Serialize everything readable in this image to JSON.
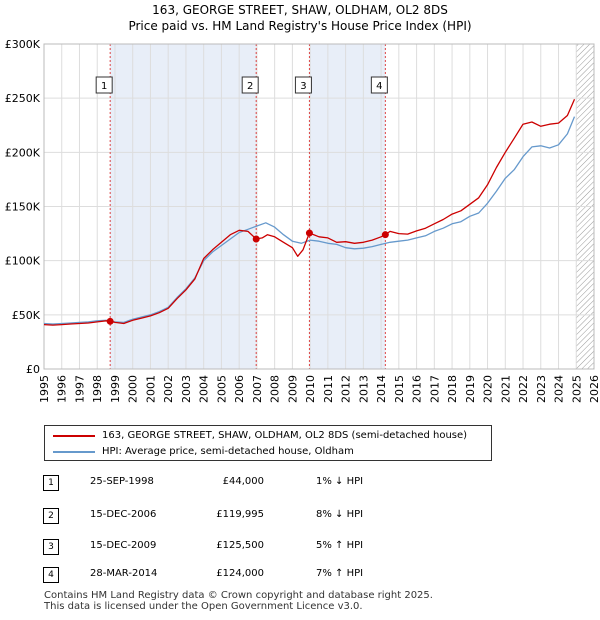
{
  "title_line1": "163, GEORGE STREET, SHAW, OLDHAM, OL2 8DS",
  "title_line2": "Price paid vs. HM Land Registry's House Price Index (HPI)",
  "colors": {
    "price_line": "#cc0000",
    "hpi_line": "#6699cc",
    "shade": "#e8eef8",
    "marker_line": "#dd4444",
    "hatch": "#999999",
    "grid": "#dddddd"
  },
  "chart_data": {
    "type": "line",
    "title": "163, GEORGE STREET, SHAW, OLDHAM, OL2 8DS",
    "subtitle": "Price paid vs. HM Land Registry's House Price Index (HPI)",
    "xlabel": "",
    "ylabel": "",
    "xlim": [
      1995,
      2026
    ],
    "ylim": [
      0,
      300000
    ],
    "x_ticks": [
      1995,
      1996,
      1997,
      1998,
      1999,
      2000,
      2001,
      2002,
      2003,
      2004,
      2005,
      2006,
      2007,
      2008,
      2009,
      2010,
      2011,
      2012,
      2013,
      2014,
      2015,
      2016,
      2017,
      2018,
      2019,
      2020,
      2021,
      2022,
      2023,
      2024,
      2025,
      2026
    ],
    "y_ticks": [
      {
        "value": 0,
        "label": "£0"
      },
      {
        "value": 50000,
        "label": "£50K"
      },
      {
        "value": 100000,
        "label": "£100K"
      },
      {
        "value": 150000,
        "label": "£150K"
      },
      {
        "value": 200000,
        "label": "£200K"
      },
      {
        "value": 250000,
        "label": "£250K"
      },
      {
        "value": 300000,
        "label": "£300K"
      }
    ],
    "grid": true,
    "shaded_ranges": [
      [
        1998.73,
        2006.96
      ],
      [
        2009.96,
        2014.24
      ]
    ],
    "hatched_from": 2025.0,
    "series": [
      {
        "name": "163, GEORGE STREET, SHAW, OLDHAM, OL2 8DS (semi-detached house)",
        "x": [
          1995.0,
          1995.5,
          1996.0,
          1996.5,
          1997.0,
          1997.5,
          1998.0,
          1998.5,
          1998.73,
          1999.0,
          1999.5,
          2000.0,
          2000.5,
          2001.0,
          2001.5,
          2002.0,
          2002.5,
          2003.0,
          2003.5,
          2004.0,
          2004.5,
          2005.0,
          2005.5,
          2006.0,
          2006.5,
          2006.96,
          2007.3,
          2007.6,
          2008.0,
          2008.5,
          2009.0,
          2009.3,
          2009.6,
          2009.96,
          2010.5,
          2011.0,
          2011.5,
          2012.0,
          2012.5,
          2013.0,
          2013.5,
          2014.0,
          2014.24,
          2014.5,
          2015.0,
          2015.5,
          2016.0,
          2016.5,
          2017.0,
          2017.5,
          2018.0,
          2018.5,
          2019.0,
          2019.5,
          2020.0,
          2020.5,
          2021.0,
          2021.5,
          2022.0,
          2022.5,
          2023.0,
          2023.5,
          2024.0,
          2024.5,
          2024.9
        ],
        "values": [
          41000,
          40500,
          41000,
          41500,
          42000,
          42500,
          43500,
          44500,
          44000,
          43000,
          42000,
          45000,
          47000,
          49000,
          52000,
          56000,
          65000,
          73000,
          83000,
          102000,
          110000,
          117000,
          124000,
          128000,
          127000,
          119995,
          121000,
          124000,
          122000,
          117000,
          112000,
          104000,
          110000,
          125500,
          122000,
          121000,
          117000,
          117500,
          116000,
          117000,
          119000,
          122000,
          124000,
          127000,
          125000,
          124500,
          127500,
          130000,
          134000,
          138000,
          143000,
          146000,
          152000,
          158000,
          170000,
          186000,
          200000,
          213000,
          226000,
          228000,
          224000,
          226000,
          227000,
          234000,
          249000
        ]
      },
      {
        "name": "HPI: Average price, semi-detached house, Oldham",
        "x": [
          1995.0,
          1995.5,
          1996.0,
          1996.5,
          1997.0,
          1997.5,
          1998.0,
          1998.5,
          1999.0,
          1999.5,
          2000.0,
          2000.5,
          2001.0,
          2001.5,
          2002.0,
          2002.5,
          2003.0,
          2003.5,
          2004.0,
          2004.5,
          2005.0,
          2005.5,
          2006.0,
          2006.5,
          2007.0,
          2007.5,
          2008.0,
          2008.5,
          2009.0,
          2009.5,
          2010.0,
          2010.5,
          2011.0,
          2011.5,
          2012.0,
          2012.5,
          2013.0,
          2013.5,
          2014.0,
          2014.5,
          2015.0,
          2015.5,
          2016.0,
          2016.5,
          2017.0,
          2017.5,
          2018.0,
          2018.5,
          2019.0,
          2019.5,
          2020.0,
          2020.5,
          2021.0,
          2021.5,
          2022.0,
          2022.5,
          2023.0,
          2023.5,
          2024.0,
          2024.5,
          2024.9
        ],
        "values": [
          42000,
          41500,
          42000,
          42500,
          43000,
          43500,
          44500,
          45000,
          43500,
          43000,
          46000,
          48000,
          50000,
          53000,
          57000,
          66000,
          74000,
          84000,
          100000,
          108000,
          114000,
          120000,
          126000,
          129000,
          132000,
          135000,
          131000,
          124000,
          118000,
          116000,
          119000,
          118000,
          116000,
          115000,
          112000,
          111000,
          111500,
          113000,
          115000,
          117000,
          118000,
          119000,
          121000,
          123000,
          127000,
          130000,
          134000,
          136000,
          141000,
          144000,
          153000,
          164000,
          176000,
          184000,
          196000,
          205000,
          206000,
          204000,
          207000,
          217000,
          233000
        ]
      }
    ],
    "markers": [
      {
        "label": "1",
        "x": 1998.73,
        "price": 44000
      },
      {
        "label": "2",
        "x": 2006.96,
        "price": 119995
      },
      {
        "label": "3",
        "x": 2009.96,
        "price": 125500
      },
      {
        "label": "4",
        "x": 2014.24,
        "price": 124000
      }
    ]
  },
  "legend": {
    "items": [
      {
        "label": "163, GEORGE STREET, SHAW, OLDHAM, OL2 8DS (semi-detached house)"
      },
      {
        "label": "HPI: Average price, semi-detached house, Oldham"
      }
    ]
  },
  "sales": [
    {
      "num": "1",
      "date": "25-SEP-1998",
      "price": "£44,000",
      "hpi": "1% ↓ HPI"
    },
    {
      "num": "2",
      "date": "15-DEC-2006",
      "price": "£119,995",
      "hpi": "8% ↓ HPI"
    },
    {
      "num": "3",
      "date": "15-DEC-2009",
      "price": "£125,500",
      "hpi": "5% ↑ HPI"
    },
    {
      "num": "4",
      "date": "28-MAR-2014",
      "price": "£124,000",
      "hpi": "7% ↑ HPI"
    }
  ],
  "footer": {
    "line1": "Contains HM Land Registry data © Crown copyright and database right 2025.",
    "line2": "This data is licensed under the Open Government Licence v3.0."
  }
}
